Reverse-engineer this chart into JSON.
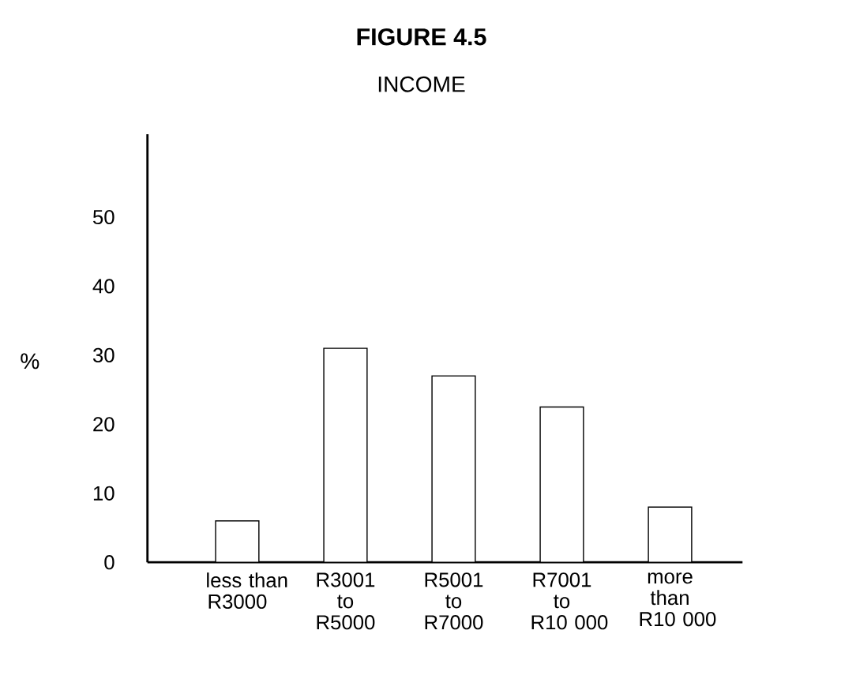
{
  "chart_data": {
    "type": "bar",
    "title": "FIGURE 4.5",
    "subtitle": "INCOME",
    "ylabel": "%",
    "categories": [
      "less than R3000",
      "R3001 to R5000",
      "R5001 to R7000",
      "R7001 to R10 000",
      "more than R10 000"
    ],
    "values": [
      6,
      31,
      27,
      22.5,
      8
    ],
    "color": "#ffffff",
    "ylim": [
      0,
      62
    ],
    "yticks": [
      0,
      10,
      20,
      30,
      40,
      50
    ],
    "grid": false
  }
}
